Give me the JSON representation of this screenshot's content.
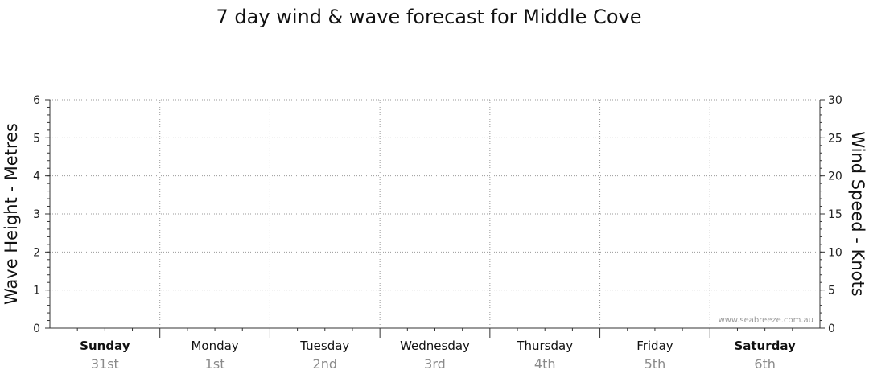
{
  "chart_data": {
    "type": "line",
    "title": "7 day wind & wave forecast for Middle Cove",
    "ylabel_left": "Wave Height - Metres",
    "ylabel_right": "Wind Speed - Knots",
    "ylim_left": [
      0,
      6
    ],
    "ylim_right": [
      0,
      30
    ],
    "yticks_left": [
      "0",
      "1",
      "2",
      "3",
      "4",
      "5",
      "6"
    ],
    "yticks_right": [
      "0",
      "5",
      "10",
      "15",
      "20",
      "25",
      "30"
    ],
    "categories": [
      {
        "day": "Sunday",
        "date": "31st",
        "bold": true
      },
      {
        "day": "Monday",
        "date": "1st",
        "bold": false
      },
      {
        "day": "Tuesday",
        "date": "2nd",
        "bold": false
      },
      {
        "day": "Wednesday",
        "date": "3rd",
        "bold": false
      },
      {
        "day": "Thursday",
        "date": "4th",
        "bold": false
      },
      {
        "day": "Friday",
        "date": "5th",
        "bold": false
      },
      {
        "day": "Saturday",
        "date": "6th",
        "bold": true
      }
    ],
    "series": [],
    "grid": true,
    "watermark": "www.seabreeze.com.au"
  }
}
